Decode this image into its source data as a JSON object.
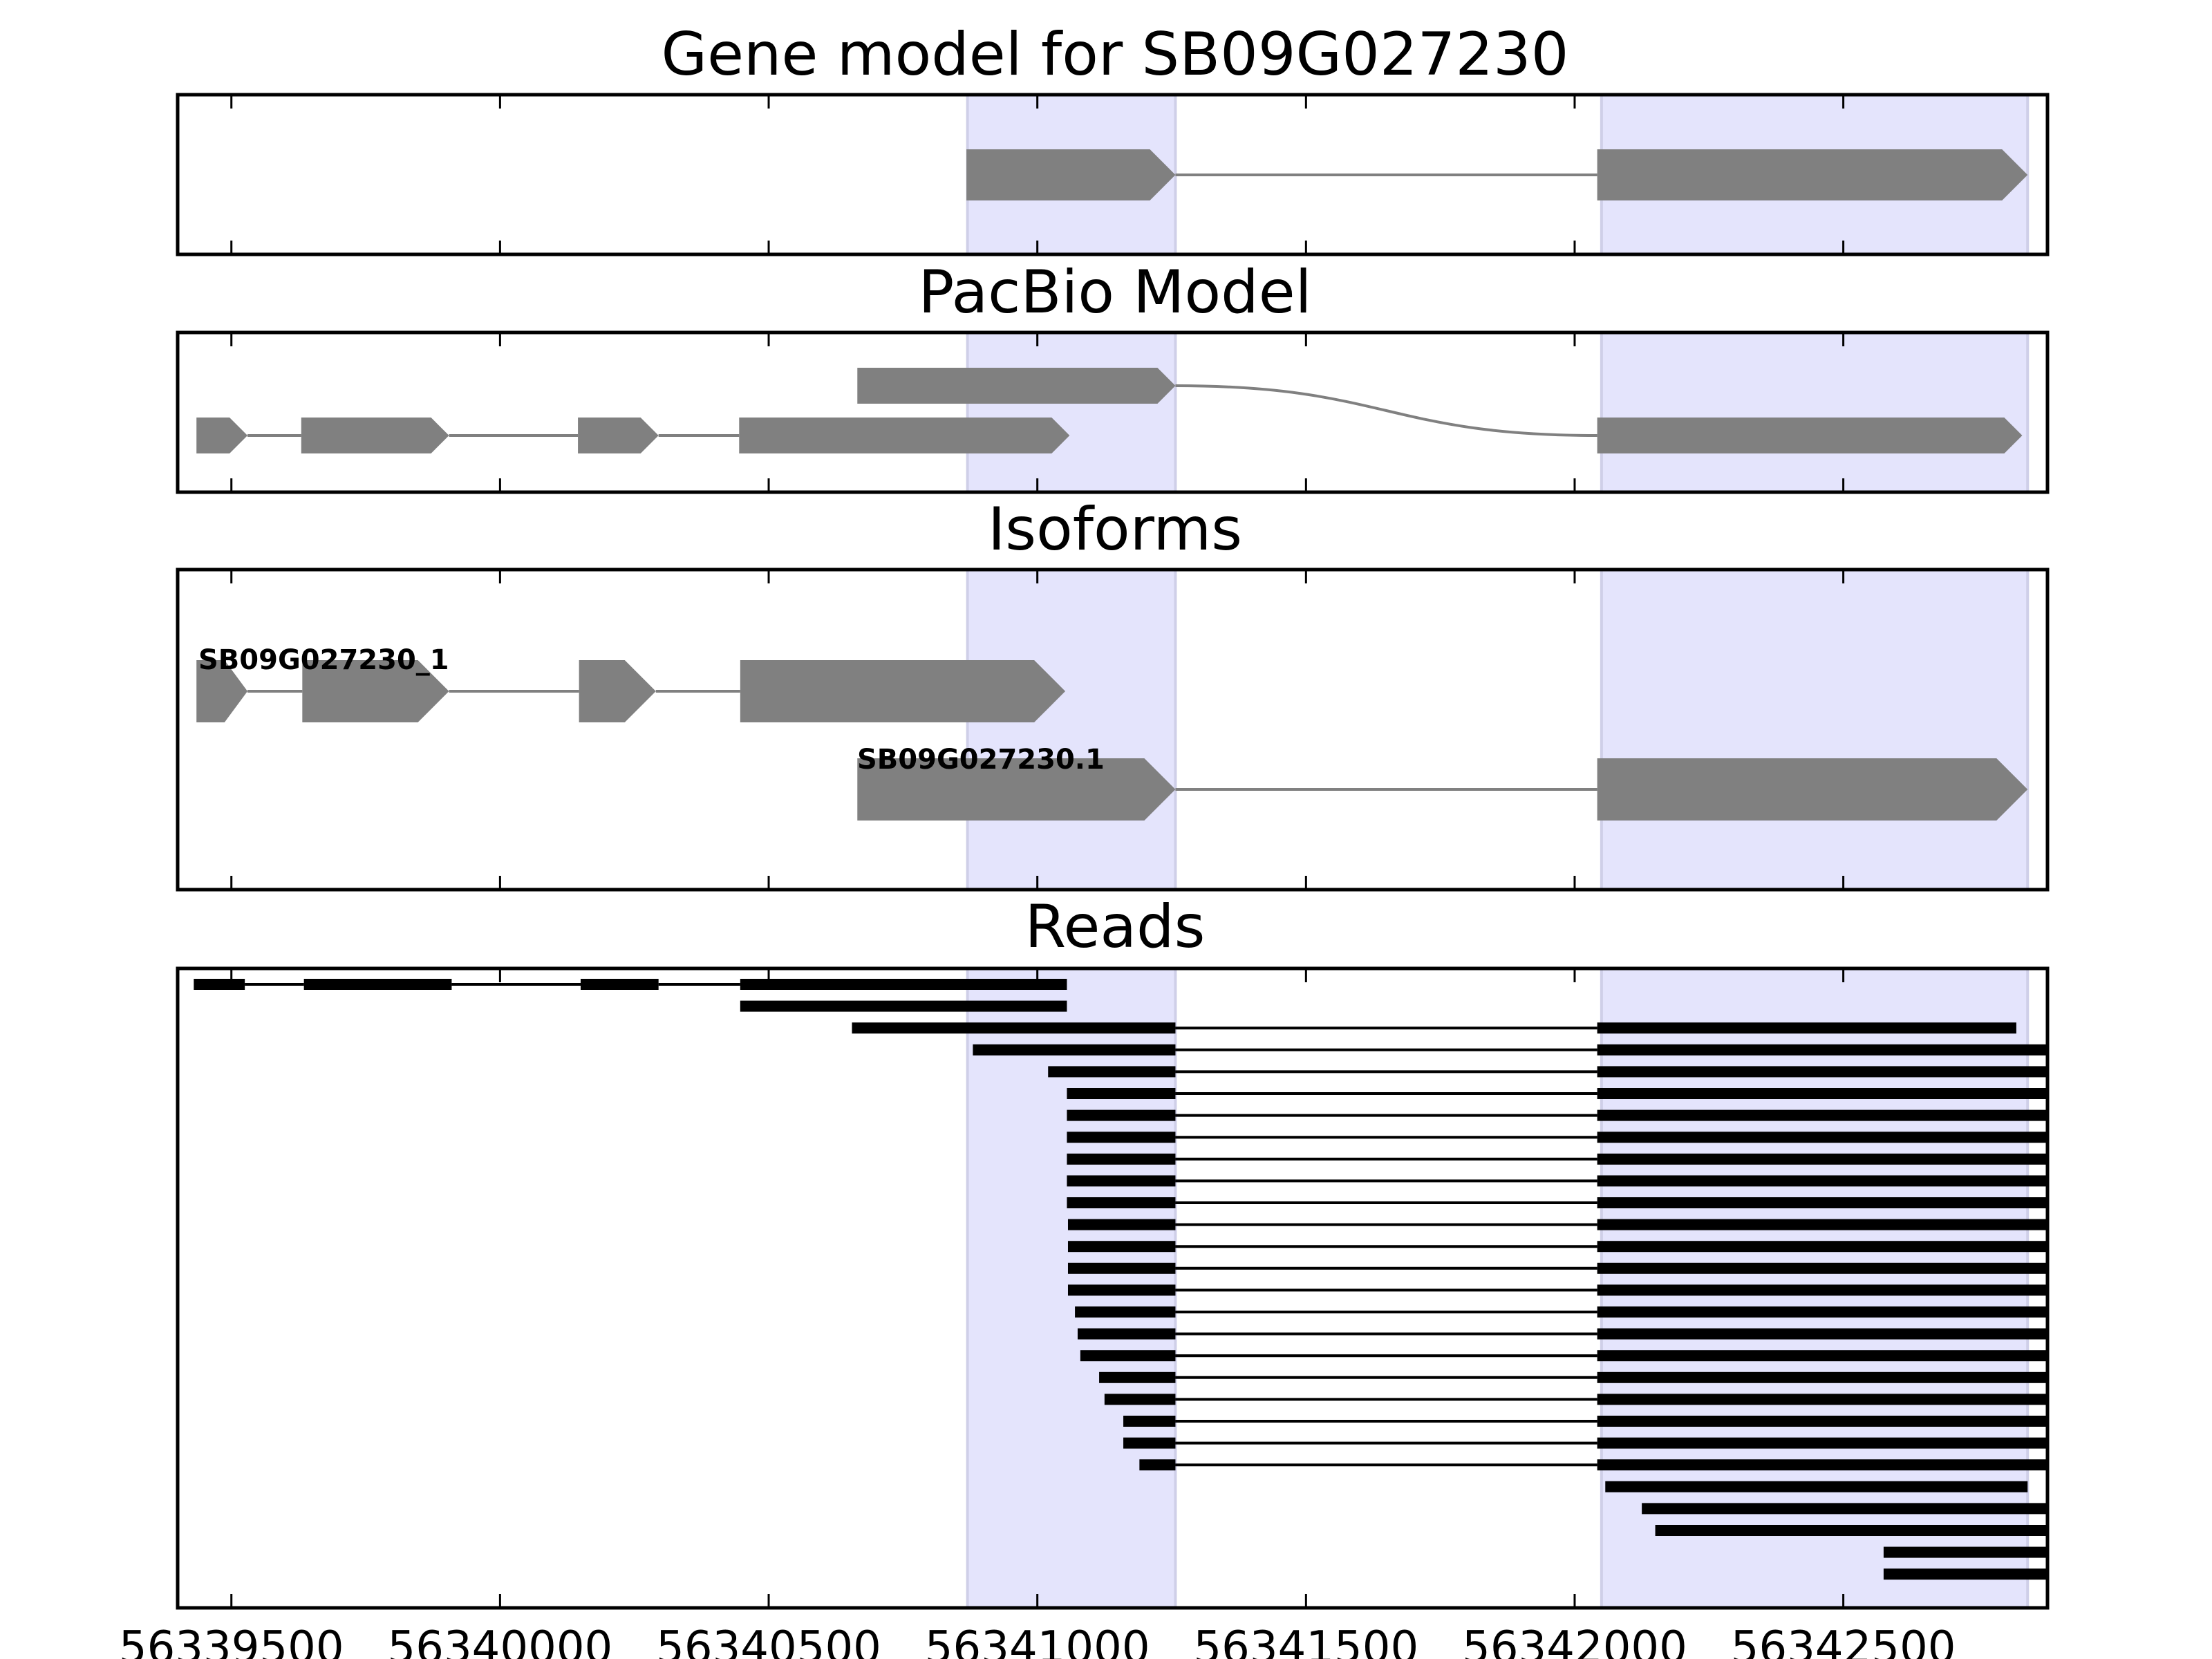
{
  "chart_data": {
    "type": "gene-track",
    "x_range": [
      56339400,
      56342880
    ],
    "x_ticks": [
      56339500,
      56340000,
      56340500,
      56341000,
      56341500,
      56342000,
      56342500
    ],
    "x_tick_labels": [
      "56339500",
      "56340000",
      "56340500",
      "56341000",
      "56341500",
      "56342000",
      "56342500"
    ],
    "highlight_regions": [
      [
        56340870,
        56341257
      ],
      [
        56342050,
        56342843
      ]
    ],
    "colors": {
      "feature": "#808080",
      "read": "#000000",
      "highlight": "#e4e4fc",
      "highlight_edge": "#cfcfe8",
      "frame": "#000000"
    },
    "panels": [
      {
        "title": "Gene model for SB09G027230",
        "tracks": [
          {
            "row": 0,
            "label": "",
            "exons": [
              [
                56340868,
                56341257
              ],
              [
                56342042,
                56342843
              ]
            ]
          }
        ]
      },
      {
        "title": "PacBio Model",
        "tracks": [
          {
            "row": 0,
            "label": "",
            "exons": [
              [
                56340665,
                56341257
              ]
            ],
            "join_to_row": 1,
            "join_exon": [
              56342042,
              56342833
            ]
          },
          {
            "row": 1,
            "label": "",
            "exons": [
              [
                56339435,
                56339530
              ],
              [
                56339630,
                56339905
              ],
              [
                56340145,
                56340295
              ],
              [
                56340445,
                56341060
              ]
            ]
          }
        ]
      },
      {
        "title": "Isoforms",
        "tracks": [
          {
            "row": 0,
            "label": "SB09G027230_1",
            "exons": [
              [
                56339435,
                56339530
              ],
              [
                56339632,
                56339905
              ],
              [
                56340147,
                56340290
              ],
              [
                56340447,
                56341052
              ]
            ]
          },
          {
            "row": 1,
            "label": "SB09G027230.1",
            "exons": [
              [
                56340665,
                56341257
              ],
              [
                56342042,
                56342843
              ]
            ]
          }
        ]
      },
      {
        "title": "Reads",
        "reads": [
          {
            "exons": [
              [
                56339430,
                56339525
              ],
              [
                56339635,
                56339910
              ],
              [
                56340150,
                56340295
              ],
              [
                56340447,
                56341055
              ]
            ]
          },
          {
            "exons": [
              [
                56340447,
                56341055
              ]
            ]
          },
          {
            "exons": [
              [
                56340655,
                56341257
              ],
              [
                56342042,
                56342822
              ]
            ]
          },
          {
            "exons": [
              [
                56340880,
                56341257
              ],
              [
                56342042,
                56342880
              ]
            ]
          },
          {
            "exons": [
              [
                56341020,
                56341257
              ],
              [
                56342042,
                56342880
              ]
            ]
          },
          {
            "exons": [
              [
                56341055,
                56341257
              ],
              [
                56342042,
                56342880
              ]
            ]
          },
          {
            "exons": [
              [
                56341055,
                56341257
              ],
              [
                56342042,
                56342880
              ]
            ]
          },
          {
            "exons": [
              [
                56341055,
                56341257
              ],
              [
                56342042,
                56342880
              ]
            ]
          },
          {
            "exons": [
              [
                56341055,
                56341257
              ],
              [
                56342042,
                56342880
              ]
            ]
          },
          {
            "exons": [
              [
                56341055,
                56341257
              ],
              [
                56342042,
                56342880
              ]
            ]
          },
          {
            "exons": [
              [
                56341055,
                56341257
              ],
              [
                56342042,
                56342880
              ]
            ]
          },
          {
            "exons": [
              [
                56341057,
                56341257
              ],
              [
                56342042,
                56342880
              ]
            ]
          },
          {
            "exons": [
              [
                56341057,
                56341257
              ],
              [
                56342042,
                56342880
              ]
            ]
          },
          {
            "exons": [
              [
                56341057,
                56341257
              ],
              [
                56342042,
                56342880
              ]
            ]
          },
          {
            "exons": [
              [
                56341057,
                56341257
              ],
              [
                56342042,
                56342880
              ]
            ]
          },
          {
            "exons": [
              [
                56341070,
                56341257
              ],
              [
                56342042,
                56342880
              ]
            ]
          },
          {
            "exons": [
              [
                56341075,
                56341257
              ],
              [
                56342042,
                56342880
              ]
            ]
          },
          {
            "exons": [
              [
                56341080,
                56341257
              ],
              [
                56342042,
                56342880
              ]
            ]
          },
          {
            "exons": [
              [
                56341115,
                56341257
              ],
              [
                56342042,
                56342880
              ]
            ]
          },
          {
            "exons": [
              [
                56341125,
                56341257
              ],
              [
                56342042,
                56342880
              ]
            ]
          },
          {
            "exons": [
              [
                56341160,
                56341257
              ],
              [
                56342042,
                56342880
              ]
            ]
          },
          {
            "exons": [
              [
                56341160,
                56341257
              ],
              [
                56342042,
                56342880
              ]
            ]
          },
          {
            "exons": [
              [
                56341190,
                56341257
              ],
              [
                56342042,
                56342880
              ]
            ]
          },
          {
            "exons": [
              [
                56342057,
                56342843
              ]
            ]
          },
          {
            "exons": [
              [
                56342125,
                56342880
              ]
            ]
          },
          {
            "exons": [
              [
                56342150,
                56342880
              ]
            ]
          },
          {
            "exons": [
              [
                56342575,
                56342880
              ]
            ]
          },
          {
            "exons": [
              [
                56342575,
                56342880
              ]
            ]
          }
        ]
      }
    ]
  }
}
